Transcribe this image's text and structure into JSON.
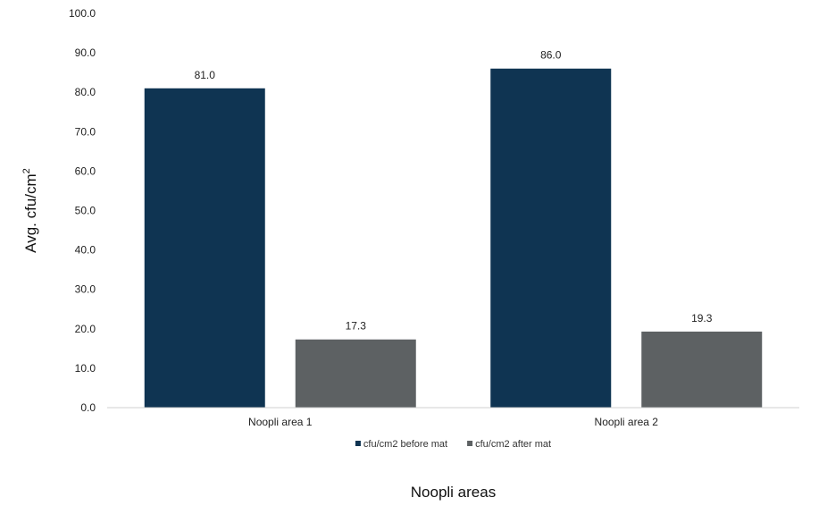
{
  "chart_data": {
    "type": "bar",
    "title": "",
    "xlabel": "Noopli areas",
    "ylabel": "Avg. cfu/cm",
    "ylabel_superscript": "2",
    "categories": [
      "Noopli area 1",
      "Noopli area 2"
    ],
    "series": [
      {
        "name": "cfu/cm2 before mat",
        "values": [
          81.0,
          86.0
        ],
        "color": "#0f3452"
      },
      {
        "name": "cfu/cm2 after mat",
        "values": [
          17.3,
          19.3
        ],
        "color": "#5d6163"
      }
    ],
    "ylim": [
      0,
      100
    ],
    "yticks": [
      "0.0",
      "10.0",
      "20.0",
      "30.0",
      "40.0",
      "50.0",
      "60.0",
      "70.0",
      "80.0",
      "90.0",
      "100.0"
    ],
    "data_labels": [
      [
        "81.0",
        "86.0"
      ],
      [
        "17.3",
        "19.3"
      ]
    ],
    "legend_position": "bottom",
    "grid": false
  }
}
